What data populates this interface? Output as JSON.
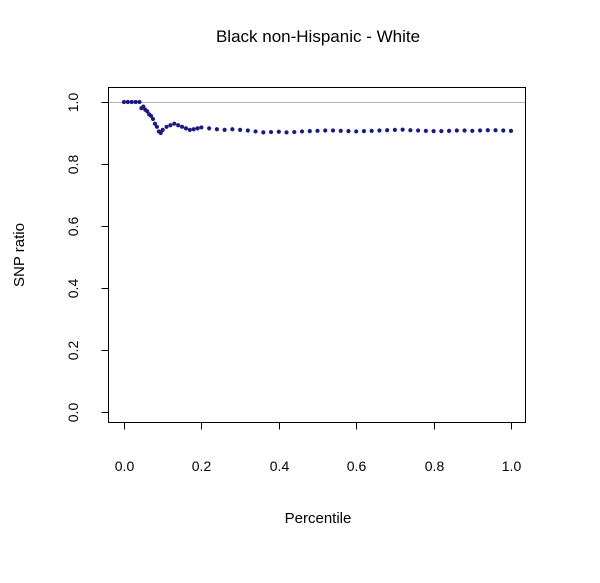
{
  "chart_data": {
    "type": "scatter",
    "title": "Black non-Hispanic - White",
    "xlabel": "Percentile",
    "ylabel": "SNP ratio",
    "xlim": [
      0.0,
      1.0
    ],
    "ylim": [
      0.0,
      1.0
    ],
    "x_ticks": [
      "0.0",
      "0.2",
      "0.4",
      "0.6",
      "0.8",
      "1.0"
    ],
    "y_ticks": [
      "0.0",
      "0.2",
      "0.4",
      "0.6",
      "0.8",
      "1.0"
    ],
    "reference_line_y": 1.0,
    "grid": false,
    "point_color": "#1a1a80",
    "reference_line_color": "#b0b0b0",
    "series": [
      {
        "x": [
          0.0,
          0.01,
          0.02,
          0.03,
          0.04,
          0.045,
          0.05,
          0.055,
          0.06,
          0.065,
          0.07,
          0.075,
          0.08,
          0.085,
          0.09,
          0.095,
          0.1,
          0.11,
          0.12,
          0.13,
          0.14,
          0.15,
          0.16,
          0.17,
          0.18,
          0.19,
          0.2,
          0.22,
          0.24,
          0.26,
          0.28,
          0.3,
          0.32,
          0.34,
          0.36,
          0.38,
          0.4,
          0.42,
          0.44,
          0.46,
          0.48,
          0.5,
          0.52,
          0.54,
          0.56,
          0.58,
          0.6,
          0.62,
          0.64,
          0.66,
          0.68,
          0.7,
          0.72,
          0.74,
          0.76,
          0.78,
          0.8,
          0.82,
          0.84,
          0.86,
          0.88,
          0.9,
          0.92,
          0.94,
          0.96,
          0.98,
          1.0
        ],
        "y": [
          1.0,
          1.0,
          1.0,
          1.0,
          1.0,
          0.98,
          0.985,
          0.975,
          0.97,
          0.96,
          0.955,
          0.945,
          0.93,
          0.92,
          0.905,
          0.9,
          0.91,
          0.92,
          0.925,
          0.93,
          0.925,
          0.92,
          0.915,
          0.91,
          0.912,
          0.915,
          0.918,
          0.915,
          0.912,
          0.91,
          0.912,
          0.91,
          0.908,
          0.905,
          0.902,
          0.903,
          0.904,
          0.902,
          0.903,
          0.905,
          0.906,
          0.907,
          0.908,
          0.908,
          0.907,
          0.906,
          0.905,
          0.906,
          0.907,
          0.908,
          0.909,
          0.91,
          0.911,
          0.909,
          0.908,
          0.907,
          0.906,
          0.906,
          0.907,
          0.908,
          0.908,
          0.907,
          0.908,
          0.909,
          0.909,
          0.908,
          0.907
        ]
      }
    ]
  }
}
